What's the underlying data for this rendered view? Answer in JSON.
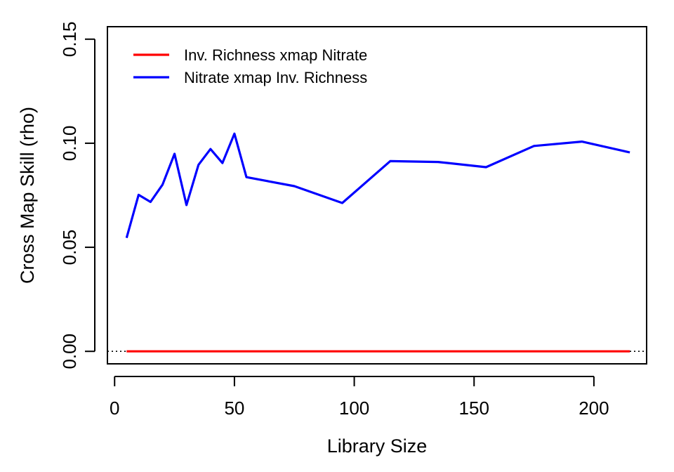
{
  "chart_data": {
    "type": "line",
    "title": "",
    "xlabel": "Library Size",
    "ylabel": "Cross Map Skill (rho)",
    "xlim": [
      -3,
      222
    ],
    "ylim": [
      -0.006,
      0.156
    ],
    "xticks": [
      0,
      50,
      100,
      150,
      200
    ],
    "yticks": [
      0.0,
      0.05,
      0.1,
      0.15
    ],
    "xtick_labels": [
      "0",
      "50",
      "100",
      "150",
      "200"
    ],
    "ytick_labels": [
      "0.00",
      "0.05",
      "0.10",
      "0.15"
    ],
    "grid": false,
    "legend_position": "top-left",
    "reference_line": {
      "y": 0,
      "style": "dotted",
      "color": "#000000"
    },
    "series": [
      {
        "name": "Inv. Richness xmap Nitrate",
        "color": "#ff0000",
        "x": [
          5,
          10,
          15,
          20,
          25,
          30,
          35,
          40,
          45,
          50,
          55,
          75,
          95,
          115,
          135,
          155,
          175,
          195,
          215
        ],
        "y": [
          0,
          0,
          0,
          0,
          0,
          0,
          0,
          0,
          0,
          0,
          0,
          0,
          0,
          0,
          0,
          0,
          0,
          0,
          0
        ]
      },
      {
        "name": "Nitrate xmap Inv. Richness",
        "color": "#0000ff",
        "x": [
          5,
          10,
          15,
          20,
          25,
          30,
          35,
          40,
          45,
          50,
          55,
          75,
          95,
          115,
          135,
          155,
          175,
          195,
          215
        ],
        "y": [
          0.0545,
          0.0752,
          0.0718,
          0.0801,
          0.0949,
          0.0703,
          0.0896,
          0.0972,
          0.0905,
          0.1046,
          0.0837,
          0.0794,
          0.0713,
          0.0914,
          0.091,
          0.0885,
          0.0987,
          0.1008,
          0.0956
        ]
      }
    ]
  }
}
